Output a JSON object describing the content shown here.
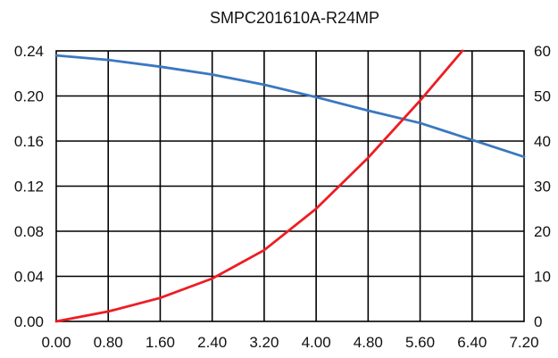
{
  "chart_data": {
    "type": "line",
    "title": "SMPC201610A-R24MP",
    "xlabel": "",
    "ylabel": "",
    "y2label": "",
    "grid": true,
    "xlim": [
      0,
      7.2
    ],
    "ylim": [
      0,
      0.24
    ],
    "y2lim": [
      0,
      60
    ],
    "x_ticks": [
      "0.00",
      "0.80",
      "1.60",
      "2.40",
      "3.20",
      "4.00",
      "4.80",
      "5.60",
      "6.40",
      "7.20"
    ],
    "y_ticks": [
      "0.00",
      "0.04",
      "0.08",
      "0.12",
      "0.16",
      "0.20",
      "0.24"
    ],
    "y2_ticks": [
      "0",
      "10",
      "20",
      "30",
      "40",
      "50",
      "60"
    ],
    "series": [
      {
        "axis": "left",
        "color": "#3a78c0",
        "x": [
          0,
          0.8,
          1.6,
          2.4,
          3.2,
          4.0,
          4.8,
          5.6,
          6.4,
          7.2
        ],
        "values": [
          0.236,
          0.232,
          0.226,
          0.219,
          0.21,
          0.199,
          0.187,
          0.176,
          0.161,
          0.146
        ]
      },
      {
        "axis": "right",
        "color": "#ee1c24",
        "x": [
          0,
          0.8,
          1.6,
          2.4,
          3.2,
          4.0,
          4.8,
          5.6,
          6.25
        ],
        "values": [
          0,
          2.2,
          5.2,
          9.5,
          15.8,
          25.0,
          36.3,
          49.0,
          60
        ]
      }
    ]
  }
}
